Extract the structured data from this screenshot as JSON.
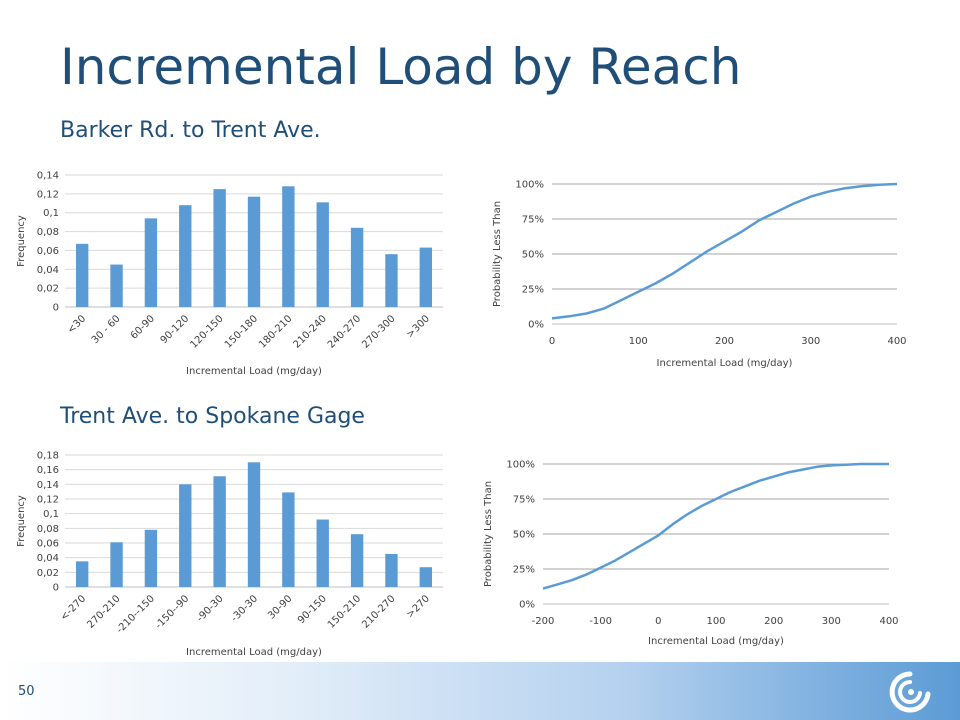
{
  "slide": {
    "title": "Incremental Load by Reach",
    "page_number": "50",
    "colors": {
      "title": "#1f4e79",
      "bar": "#5b9bd5",
      "line": "#5b9bd5"
    },
    "logo_icon": "swirl-logo-icon"
  },
  "sections": [
    {
      "subtitle": "Barker Rd. to Trent Ave."
    },
    {
      "subtitle": "Trent Ave. to Spokane Gage"
    }
  ],
  "chart_data": [
    {
      "type": "bar",
      "categories": [
        "<30",
        "30 - 60",
        "60-90",
        "90-120",
        "120-150",
        "150-180",
        "180-210",
        "210-240",
        "240-270",
        "270-300",
        ">300"
      ],
      "values": [
        0.067,
        0.045,
        0.094,
        0.108,
        0.125,
        0.117,
        0.128,
        0.111,
        0.084,
        0.056,
        0.063
      ],
      "ylabel": "Frequency",
      "xlabel": "Incremental Load (mg/day)",
      "ylim": [
        0,
        0.14
      ],
      "yticks": [
        "0",
        "0,02",
        "0,04",
        "0,06",
        "0,08",
        "0,1",
        "0,12",
        "0,14"
      ],
      "grid": true
    },
    {
      "type": "line",
      "x": [
        0,
        20,
        40,
        60,
        80,
        100,
        120,
        140,
        160,
        180,
        200,
        220,
        240,
        260,
        280,
        300,
        320,
        340,
        360,
        380,
        400
      ],
      "y": [
        0.04,
        0.055,
        0.075,
        0.11,
        0.17,
        0.23,
        0.29,
        0.36,
        0.44,
        0.52,
        0.59,
        0.66,
        0.74,
        0.8,
        0.86,
        0.91,
        0.945,
        0.97,
        0.985,
        0.995,
        1.0
      ],
      "ylabel": "Probability Less Than",
      "xlabel": "Incremental Load (mg/day)",
      "xlim": [
        0,
        400
      ],
      "ylim": [
        0,
        1
      ],
      "xticks": [
        "0",
        "100",
        "200",
        "300",
        "400"
      ],
      "yticks": [
        "0%",
        "25%",
        "50%",
        "75%",
        "100%"
      ],
      "grid": true
    },
    {
      "type": "bar",
      "categories": [
        "<-270",
        "270-210",
        "-210--150",
        "-150--90",
        "-90-30",
        "-30-30",
        "30-90",
        "90-150",
        "150-210",
        "210-270",
        ">270"
      ],
      "values": [
        0.035,
        0.061,
        0.078,
        0.14,
        0.151,
        0.17,
        0.129,
        0.092,
        0.072,
        0.045,
        0.027
      ],
      "ylabel": "Frequency",
      "xlabel": "Incremental Load (mg/day)",
      "ylim": [
        0,
        0.18
      ],
      "yticks": [
        "0",
        "0,02",
        "0,04",
        "0,06",
        "0,08",
        "0,1",
        "0,12",
        "0,14",
        "0,16",
        "0,18"
      ],
      "grid": true
    },
    {
      "type": "line",
      "x": [
        -200,
        -175,
        -150,
        -125,
        -100,
        -75,
        -50,
        -25,
        0,
        25,
        50,
        75,
        100,
        125,
        150,
        175,
        200,
        225,
        250,
        275,
        300,
        325,
        350,
        375,
        400
      ],
      "y": [
        0.11,
        0.14,
        0.17,
        0.21,
        0.26,
        0.31,
        0.37,
        0.43,
        0.49,
        0.57,
        0.64,
        0.7,
        0.75,
        0.8,
        0.84,
        0.88,
        0.91,
        0.94,
        0.96,
        0.98,
        0.99,
        0.995,
        1.0,
        1.0,
        1.0
      ],
      "ylabel": "Probability Less Than",
      "xlabel": "Incremental Load (mg/day)",
      "xlim": [
        -200,
        400
      ],
      "ylim": [
        0,
        1
      ],
      "xticks": [
        "-200",
        "-100",
        "0",
        "100",
        "200",
        "300",
        "400"
      ],
      "yticks": [
        "0%",
        "25%",
        "50%",
        "75%",
        "100%"
      ],
      "grid": true
    }
  ]
}
